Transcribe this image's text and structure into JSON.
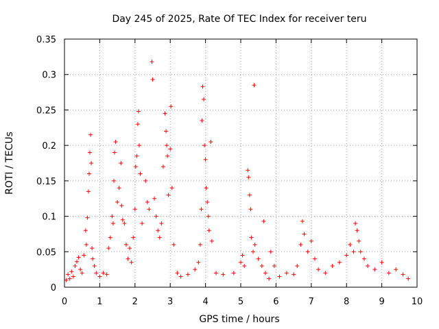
{
  "chart_data": {
    "type": "scatter",
    "title": "Day 245 of 2025, Rate Of TEC Index for receiver teru",
    "xlabel": "GPS time / hours",
    "ylabel": "ROTI / TECUs",
    "xlim": [
      0,
      10
    ],
    "ylim": [
      0,
      0.35
    ],
    "xticks": [
      0,
      1,
      2,
      3,
      4,
      5,
      6,
      7,
      8,
      9,
      10
    ],
    "xtick_labels": [
      "0",
      "1",
      "2",
      "3",
      "4",
      "5",
      "6",
      "7",
      "8",
      "9",
      "10"
    ],
    "yticks": [
      0,
      0.05,
      0.1,
      0.15,
      0.2,
      0.25,
      0.3,
      0.35
    ],
    "ytick_labels": [
      "0",
      "0.05",
      "0.1",
      "0.15",
      "0.2",
      "0.25",
      "0.3",
      "0.35"
    ],
    "grid": true,
    "marker": "+",
    "marker_color": "#ff0000",
    "series": [
      {
        "name": "ROTI",
        "points": [
          [
            0.05,
            0.01
          ],
          [
            0.1,
            0.018
          ],
          [
            0.15,
            0.012
          ],
          [
            0.2,
            0.022
          ],
          [
            0.25,
            0.015
          ],
          [
            0.3,
            0.03
          ],
          [
            0.35,
            0.036
          ],
          [
            0.4,
            0.042
          ],
          [
            0.45,
            0.025
          ],
          [
            0.5,
            0.02
          ],
          [
            0.55,
            0.045
          ],
          [
            0.6,
            0.08
          ],
          [
            0.62,
            0.06
          ],
          [
            0.65,
            0.098
          ],
          [
            0.68,
            0.135
          ],
          [
            0.7,
            0.16
          ],
          [
            0.72,
            0.19
          ],
          [
            0.74,
            0.215
          ],
          [
            0.76,
            0.175
          ],
          [
            0.78,
            0.055
          ],
          [
            0.8,
            0.04
          ],
          [
            0.85,
            0.03
          ],
          [
            0.9,
            0.02
          ],
          [
            1.0,
            0.015
          ],
          [
            1.1,
            0.02
          ],
          [
            1.2,
            0.018
          ],
          [
            1.25,
            0.055
          ],
          [
            1.3,
            0.07
          ],
          [
            1.35,
            0.1
          ],
          [
            1.38,
            0.09
          ],
          [
            1.4,
            0.15
          ],
          [
            1.42,
            0.19
          ],
          [
            1.45,
            0.205
          ],
          [
            1.5,
            0.12
          ],
          [
            1.55,
            0.14
          ],
          [
            1.6,
            0.175
          ],
          [
            1.62,
            0.115
          ],
          [
            1.65,
            0.095
          ],
          [
            1.7,
            0.09
          ],
          [
            1.75,
            0.06
          ],
          [
            1.8,
            0.04
          ],
          [
            1.85,
            0.055
          ],
          [
            1.9,
            0.035
          ],
          [
            1.95,
            0.07
          ],
          [
            2.0,
            0.11
          ],
          [
            2.02,
            0.17
          ],
          [
            2.05,
            0.185
          ],
          [
            2.08,
            0.23
          ],
          [
            2.1,
            0.248
          ],
          [
            2.12,
            0.2
          ],
          [
            2.15,
            0.16
          ],
          [
            2.2,
            0.09
          ],
          [
            2.3,
            0.15
          ],
          [
            2.35,
            0.12
          ],
          [
            2.4,
            0.11
          ],
          [
            2.48,
            0.318
          ],
          [
            2.5,
            0.293
          ],
          [
            2.55,
            0.125
          ],
          [
            2.6,
            0.1
          ],
          [
            2.65,
            0.08
          ],
          [
            2.7,
            0.07
          ],
          [
            2.75,
            0.09
          ],
          [
            2.8,
            0.17
          ],
          [
            2.85,
            0.245
          ],
          [
            2.88,
            0.22
          ],
          [
            2.9,
            0.2
          ],
          [
            2.92,
            0.185
          ],
          [
            2.95,
            0.13
          ],
          [
            3.0,
            0.195
          ],
          [
            3.02,
            0.255
          ],
          [
            3.05,
            0.14
          ],
          [
            3.1,
            0.06
          ],
          [
            3.2,
            0.02
          ],
          [
            3.3,
            0.015
          ],
          [
            3.5,
            0.018
          ],
          [
            3.7,
            0.025
          ],
          [
            3.8,
            0.035
          ],
          [
            3.85,
            0.06
          ],
          [
            3.88,
            0.11
          ],
          [
            3.9,
            0.235
          ],
          [
            3.92,
            0.283
          ],
          [
            3.95,
            0.265
          ],
          [
            3.97,
            0.2
          ],
          [
            4.0,
            0.18
          ],
          [
            4.02,
            0.14
          ],
          [
            4.05,
            0.12
          ],
          [
            4.08,
            0.1
          ],
          [
            4.1,
            0.08
          ],
          [
            4.15,
            0.205
          ],
          [
            4.18,
            0.065
          ],
          [
            4.3,
            0.02
          ],
          [
            4.5,
            0.018
          ],
          [
            4.8,
            0.02
          ],
          [
            5.0,
            0.035
          ],
          [
            5.05,
            0.045
          ],
          [
            5.1,
            0.03
          ],
          [
            5.2,
            0.165
          ],
          [
            5.22,
            0.155
          ],
          [
            5.25,
            0.13
          ],
          [
            5.28,
            0.11
          ],
          [
            5.3,
            0.07
          ],
          [
            5.35,
            0.05
          ],
          [
            5.38,
            0.285
          ],
          [
            5.4,
            0.06
          ],
          [
            5.5,
            0.04
          ],
          [
            5.6,
            0.03
          ],
          [
            5.65,
            0.093
          ],
          [
            5.7,
            0.02
          ],
          [
            5.8,
            0.012
          ],
          [
            5.85,
            0.05
          ],
          [
            5.95,
            0.03
          ],
          [
            6.1,
            0.015
          ],
          [
            6.3,
            0.02
          ],
          [
            6.5,
            0.018
          ],
          [
            6.6,
            0.03
          ],
          [
            6.7,
            0.06
          ],
          [
            6.75,
            0.093
          ],
          [
            6.8,
            0.075
          ],
          [
            6.9,
            0.05
          ],
          [
            7.0,
            0.065
          ],
          [
            7.1,
            0.04
          ],
          [
            7.2,
            0.025
          ],
          [
            7.4,
            0.02
          ],
          [
            7.6,
            0.03
          ],
          [
            7.8,
            0.035
          ],
          [
            8.0,
            0.045
          ],
          [
            8.1,
            0.06
          ],
          [
            8.2,
            0.05
          ],
          [
            8.25,
            0.09
          ],
          [
            8.3,
            0.08
          ],
          [
            8.35,
            0.065
          ],
          [
            8.4,
            0.05
          ],
          [
            8.5,
            0.04
          ],
          [
            8.6,
            0.03
          ],
          [
            8.8,
            0.025
          ],
          [
            9.0,
            0.035
          ],
          [
            9.2,
            0.02
          ],
          [
            9.4,
            0.025
          ],
          [
            9.6,
            0.018
          ],
          [
            9.75,
            0.012
          ]
        ]
      }
    ]
  }
}
